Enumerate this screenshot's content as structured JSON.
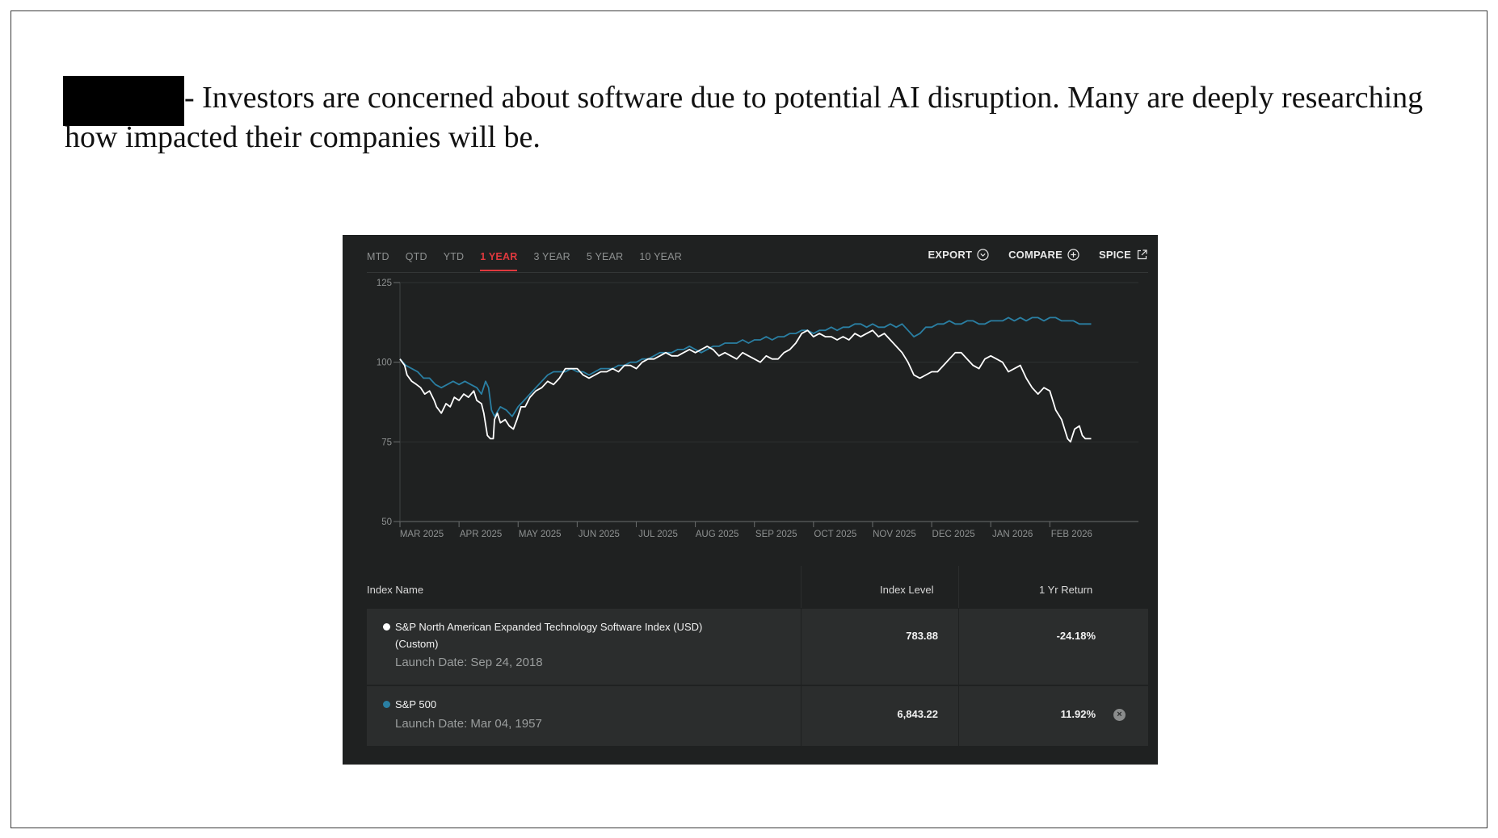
{
  "intro": {
    "text": "- Investors are concerned about software due to potential AI disruption. Many are deeply researching how impacted their companies will be."
  },
  "tabs": [
    "MTD",
    "QTD",
    "YTD",
    "1 YEAR",
    "3 YEAR",
    "5 YEAR",
    "10 YEAR"
  ],
  "active_tab": "1 YEAR",
  "tools": {
    "export": "EXPORT",
    "compare": "COMPARE",
    "spice": "SPICE"
  },
  "colors": {
    "background": "#1f2121",
    "software_series": "#ffffff",
    "sp500_series": "#2a7fa3",
    "active_tab": "#e0393e"
  },
  "table": {
    "headers": {
      "name": "Index Name",
      "level": "Index Level",
      "return": "1 Yr Return"
    },
    "rows": [
      {
        "name_line1": "S&P North American Expanded Technology Software Index (USD)",
        "name_line2": "(Custom)",
        "launch": "Launch Date: Sep 24, 2018",
        "level": "783.88",
        "return": "-24.18%"
      },
      {
        "name_line1": "S&P 500",
        "launch": "Launch Date: Mar 04, 1957",
        "level": "6,843.22",
        "return": "11.92%"
      }
    ]
  },
  "chart_data": {
    "type": "line",
    "ylim": [
      50,
      125
    ],
    "yticks": [
      "125",
      "100",
      "75",
      "50"
    ],
    "xticks": [
      "MAR 2025",
      "APR 2025",
      "MAY 2025",
      "JUN 2025",
      "JUL 2025",
      "AUG 2025",
      "SEP 2025",
      "OCT 2025",
      "NOV 2025",
      "DEC 2025",
      "JAN 2026",
      "FEB 2026"
    ],
    "xlim": [
      0,
      12.5
    ],
    "grid": true,
    "series": [
      {
        "name": "S&P North American Expanded Technology Software Index (USD)",
        "color": "#ffffff",
        "points": [
          [
            0.0,
            101
          ],
          [
            0.08,
            99
          ],
          [
            0.12,
            96
          ],
          [
            0.2,
            94
          ],
          [
            0.28,
            93
          ],
          [
            0.35,
            92
          ],
          [
            0.42,
            90
          ],
          [
            0.5,
            91
          ],
          [
            0.58,
            88
          ],
          [
            0.62,
            86
          ],
          [
            0.7,
            84
          ],
          [
            0.78,
            87
          ],
          [
            0.85,
            86
          ],
          [
            0.92,
            89
          ],
          [
            1.0,
            88
          ],
          [
            1.08,
            90
          ],
          [
            1.16,
            89
          ],
          [
            1.25,
            91
          ],
          [
            1.3,
            88
          ],
          [
            1.38,
            87
          ],
          [
            1.42,
            84
          ],
          [
            1.48,
            77
          ],
          [
            1.53,
            76
          ],
          [
            1.58,
            76
          ],
          [
            1.6,
            82
          ],
          [
            1.65,
            84
          ],
          [
            1.7,
            81
          ],
          [
            1.78,
            82
          ],
          [
            1.85,
            80
          ],
          [
            1.92,
            79
          ],
          [
            1.98,
            82
          ],
          [
            2.05,
            86
          ],
          [
            2.12,
            86
          ],
          [
            2.2,
            89
          ],
          [
            2.3,
            91
          ],
          [
            2.4,
            92
          ],
          [
            2.5,
            94
          ],
          [
            2.6,
            93
          ],
          [
            2.7,
            95
          ],
          [
            2.8,
            98
          ],
          [
            2.9,
            98
          ],
          [
            3.0,
            98
          ],
          [
            3.1,
            96
          ],
          [
            3.2,
            95
          ],
          [
            3.3,
            96
          ],
          [
            3.4,
            97
          ],
          [
            3.5,
            97
          ],
          [
            3.6,
            98
          ],
          [
            3.7,
            97
          ],
          [
            3.8,
            99
          ],
          [
            3.9,
            99
          ],
          [
            4.0,
            98
          ],
          [
            4.1,
            100
          ],
          [
            4.2,
            101
          ],
          [
            4.3,
            101
          ],
          [
            4.4,
            102
          ],
          [
            4.5,
            103
          ],
          [
            4.6,
            102
          ],
          [
            4.7,
            102
          ],
          [
            4.8,
            103
          ],
          [
            4.9,
            104
          ],
          [
            5.0,
            103
          ],
          [
            5.1,
            104
          ],
          [
            5.2,
            105
          ],
          [
            5.3,
            104
          ],
          [
            5.4,
            102
          ],
          [
            5.5,
            103
          ],
          [
            5.6,
            102
          ],
          [
            5.7,
            101
          ],
          [
            5.8,
            103
          ],
          [
            5.9,
            102
          ],
          [
            6.0,
            101
          ],
          [
            6.1,
            100
          ],
          [
            6.2,
            102
          ],
          [
            6.3,
            101
          ],
          [
            6.4,
            101
          ],
          [
            6.5,
            103
          ],
          [
            6.6,
            104
          ],
          [
            6.7,
            106
          ],
          [
            6.8,
            109
          ],
          [
            6.9,
            110
          ],
          [
            7.0,
            108
          ],
          [
            7.1,
            109
          ],
          [
            7.2,
            108
          ],
          [
            7.3,
            108
          ],
          [
            7.4,
            107
          ],
          [
            7.5,
            108
          ],
          [
            7.6,
            107
          ],
          [
            7.7,
            109
          ],
          [
            7.8,
            108
          ],
          [
            7.9,
            109
          ],
          [
            8.0,
            110
          ],
          [
            8.1,
            108
          ],
          [
            8.2,
            109
          ],
          [
            8.3,
            107
          ],
          [
            8.4,
            105
          ],
          [
            8.5,
            103
          ],
          [
            8.6,
            100
          ],
          [
            8.7,
            96
          ],
          [
            8.8,
            95
          ],
          [
            8.9,
            96
          ],
          [
            9.0,
            97
          ],
          [
            9.1,
            97
          ],
          [
            9.2,
            99
          ],
          [
            9.3,
            101
          ],
          [
            9.4,
            103
          ],
          [
            9.5,
            103
          ],
          [
            9.6,
            101
          ],
          [
            9.7,
            99
          ],
          [
            9.8,
            98
          ],
          [
            9.9,
            101
          ],
          [
            10.0,
            102
          ],
          [
            10.1,
            101
          ],
          [
            10.2,
            100
          ],
          [
            10.3,
            97
          ],
          [
            10.4,
            98
          ],
          [
            10.5,
            99
          ],
          [
            10.6,
            95
          ],
          [
            10.7,
            92
          ],
          [
            10.8,
            90
          ],
          [
            10.9,
            92
          ],
          [
            11.0,
            91
          ],
          [
            11.1,
            85
          ],
          [
            11.2,
            82
          ],
          [
            11.3,
            76
          ],
          [
            11.35,
            75
          ],
          [
            11.42,
            79
          ],
          [
            11.5,
            80
          ],
          [
            11.55,
            77
          ],
          [
            11.6,
            76
          ],
          [
            11.7,
            76
          ]
        ]
      },
      {
        "name": "S&P 500",
        "color": "#2a7fa3",
        "points": [
          [
            0.0,
            101
          ],
          [
            0.1,
            99
          ],
          [
            0.2,
            98
          ],
          [
            0.3,
            97
          ],
          [
            0.4,
            95
          ],
          [
            0.5,
            95
          ],
          [
            0.6,
            93
          ],
          [
            0.7,
            92
          ],
          [
            0.8,
            93
          ],
          [
            0.9,
            94
          ],
          [
            1.0,
            93
          ],
          [
            1.1,
            94
          ],
          [
            1.2,
            93
          ],
          [
            1.3,
            92
          ],
          [
            1.38,
            90
          ],
          [
            1.45,
            94
          ],
          [
            1.5,
            92
          ],
          [
            1.55,
            85
          ],
          [
            1.6,
            83
          ],
          [
            1.7,
            86
          ],
          [
            1.8,
            85
          ],
          [
            1.9,
            83
          ],
          [
            2.0,
            86
          ],
          [
            2.1,
            88
          ],
          [
            2.2,
            90
          ],
          [
            2.3,
            92
          ],
          [
            2.4,
            94
          ],
          [
            2.5,
            96
          ],
          [
            2.6,
            97
          ],
          [
            2.7,
            97
          ],
          [
            2.8,
            97
          ],
          [
            2.9,
            98
          ],
          [
            3.0,
            97
          ],
          [
            3.1,
            97
          ],
          [
            3.2,
            96
          ],
          [
            3.3,
            97
          ],
          [
            3.4,
            98
          ],
          [
            3.5,
            98
          ],
          [
            3.6,
            98
          ],
          [
            3.7,
            99
          ],
          [
            3.8,
            99
          ],
          [
            3.9,
            100
          ],
          [
            4.0,
            100
          ],
          [
            4.1,
            101
          ],
          [
            4.2,
            101
          ],
          [
            4.3,
            102
          ],
          [
            4.4,
            103
          ],
          [
            4.5,
            103
          ],
          [
            4.6,
            103
          ],
          [
            4.7,
            104
          ],
          [
            4.8,
            104
          ],
          [
            4.9,
            105
          ],
          [
            5.0,
            104
          ],
          [
            5.1,
            103
          ],
          [
            5.2,
            104
          ],
          [
            5.3,
            105
          ],
          [
            5.4,
            105
          ],
          [
            5.5,
            106
          ],
          [
            5.6,
            106
          ],
          [
            5.7,
            106
          ],
          [
            5.8,
            107
          ],
          [
            5.9,
            106
          ],
          [
            6.0,
            107
          ],
          [
            6.1,
            107
          ],
          [
            6.2,
            108
          ],
          [
            6.3,
            107
          ],
          [
            6.4,
            108
          ],
          [
            6.5,
            108
          ],
          [
            6.6,
            109
          ],
          [
            6.7,
            109
          ],
          [
            6.8,
            110
          ],
          [
            6.9,
            110
          ],
          [
            7.0,
            109
          ],
          [
            7.1,
            110
          ],
          [
            7.2,
            110
          ],
          [
            7.3,
            111
          ],
          [
            7.4,
            110
          ],
          [
            7.5,
            111
          ],
          [
            7.6,
            111
          ],
          [
            7.7,
            112
          ],
          [
            7.8,
            112
          ],
          [
            7.9,
            111
          ],
          [
            8.0,
            112
          ],
          [
            8.1,
            111
          ],
          [
            8.2,
            111
          ],
          [
            8.3,
            112
          ],
          [
            8.4,
            111
          ],
          [
            8.5,
            112
          ],
          [
            8.6,
            110
          ],
          [
            8.7,
            108
          ],
          [
            8.8,
            109
          ],
          [
            8.9,
            111
          ],
          [
            9.0,
            111
          ],
          [
            9.1,
            112
          ],
          [
            9.2,
            112
          ],
          [
            9.3,
            113
          ],
          [
            9.4,
            112
          ],
          [
            9.5,
            112
          ],
          [
            9.6,
            113
          ],
          [
            9.7,
            113
          ],
          [
            9.8,
            112
          ],
          [
            9.9,
            112
          ],
          [
            10.0,
            113
          ],
          [
            10.1,
            113
          ],
          [
            10.2,
            113
          ],
          [
            10.3,
            114
          ],
          [
            10.4,
            113
          ],
          [
            10.5,
            114
          ],
          [
            10.6,
            113
          ],
          [
            10.7,
            114
          ],
          [
            10.8,
            114
          ],
          [
            10.9,
            113
          ],
          [
            11.0,
            114
          ],
          [
            11.1,
            114
          ],
          [
            11.2,
            113
          ],
          [
            11.3,
            113
          ],
          [
            11.4,
            113
          ],
          [
            11.5,
            112
          ],
          [
            11.6,
            112
          ],
          [
            11.7,
            112
          ]
        ]
      }
    ]
  }
}
